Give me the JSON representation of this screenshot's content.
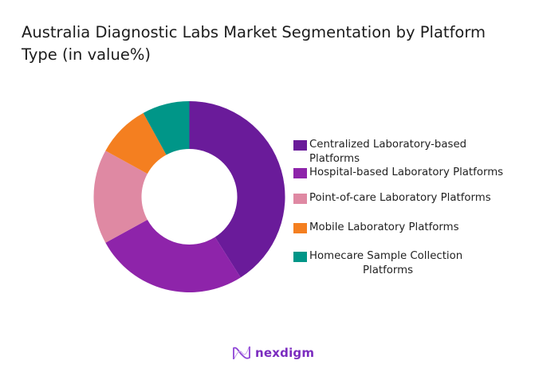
{
  "title": "Australia Diagnostic Labs Market Segmentation by Platform Type (in value%)",
  "title_lines": [
    "Australia Diagnostic Labs Market Segmentation by Platform",
    "Type (in value%)"
  ],
  "chart_data": {
    "type": "pie",
    "subtype": "donut",
    "title": "Australia Diagnostic Labs Market Segmentation by Platform Type (in value%)",
    "categories": [
      "Centralized Laboratory-based Platforms",
      "Hospital-based Laboratory  Platforms",
      "Point-of-care Laboratory Platforms",
      "Mobile Laboratory Platforms",
      "Homecare Sample Collection Platforms"
    ],
    "values": [
      41,
      26,
      16,
      9,
      8
    ],
    "colors": [
      "#6a1b9a",
      "#8e24aa",
      "#df89a3",
      "#f47f20",
      "#009688"
    ],
    "start_angle": "12 o'clock, clockwise",
    "data_labels": false,
    "legend_position": "right"
  },
  "legend": [
    {
      "lines": [
        "Centralized Laboratory-based",
        "Platforms"
      ],
      "color": "#6a1b9a"
    },
    {
      "lines": [
        "Hospital-based Laboratory  Platforms"
      ],
      "color": "#8e24aa"
    },
    {
      "lines": [
        "Point-of-care Laboratory Platforms"
      ],
      "color": "#df89a3"
    },
    {
      "lines": [
        "Mobile Laboratory Platforms"
      ],
      "color": "#f47f20"
    },
    {
      "lines": [
        "Homecare Sample Collection",
        "Platforms"
      ],
      "color": "#009688"
    }
  ],
  "brand": {
    "name": "nexdigm",
    "color": "#7b2cbf"
  }
}
